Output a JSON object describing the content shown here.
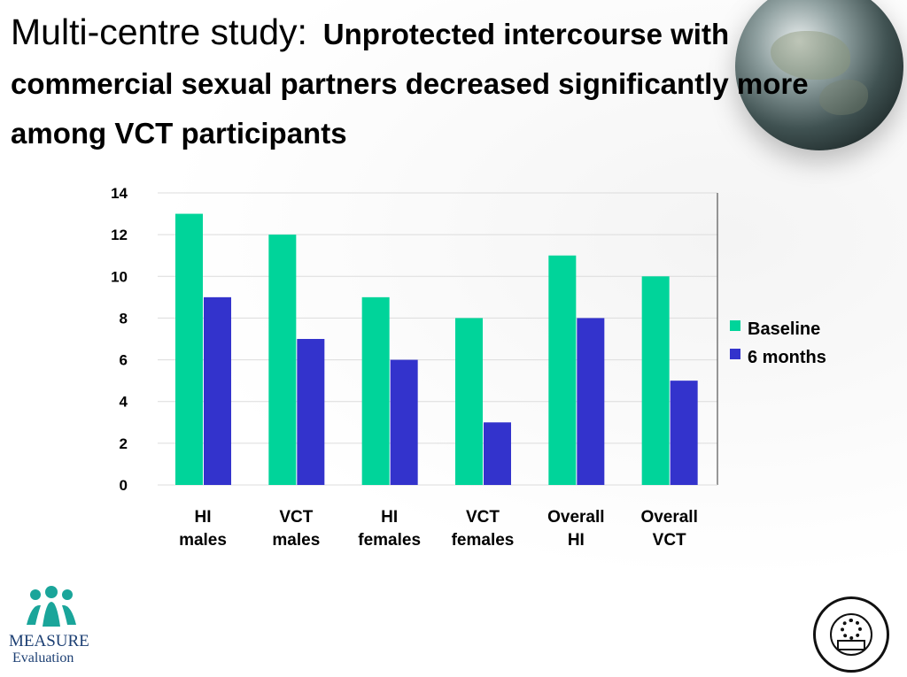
{
  "title": {
    "lead": "Multi-centre study:",
    "rest": "Unprotected intercourse with commercial sexual partners decreased significantly more among VCT participants"
  },
  "logo": {
    "line1": "MEASURE",
    "line2": "Evaluation"
  },
  "chart_data": {
    "type": "bar",
    "categories": [
      [
        "HI",
        "males"
      ],
      [
        "VCT",
        "males"
      ],
      [
        "HI",
        "females"
      ],
      [
        "VCT",
        "females"
      ],
      [
        "Overall",
        "HI"
      ],
      [
        "Overall",
        "VCT"
      ]
    ],
    "series": [
      {
        "name": "Baseline",
        "values": [
          13,
          12,
          9,
          8,
          11,
          10
        ],
        "color": "#00d49a"
      },
      {
        "name": "6 months",
        "values": [
          9,
          7,
          6,
          3,
          8,
          5
        ],
        "color": "#3333cc"
      }
    ],
    "yticks": [
      "0",
      "2",
      "4",
      "6",
      "8",
      "10",
      "12",
      "14"
    ],
    "ylim": [
      0,
      14
    ],
    "grid": true,
    "legend": "right"
  }
}
